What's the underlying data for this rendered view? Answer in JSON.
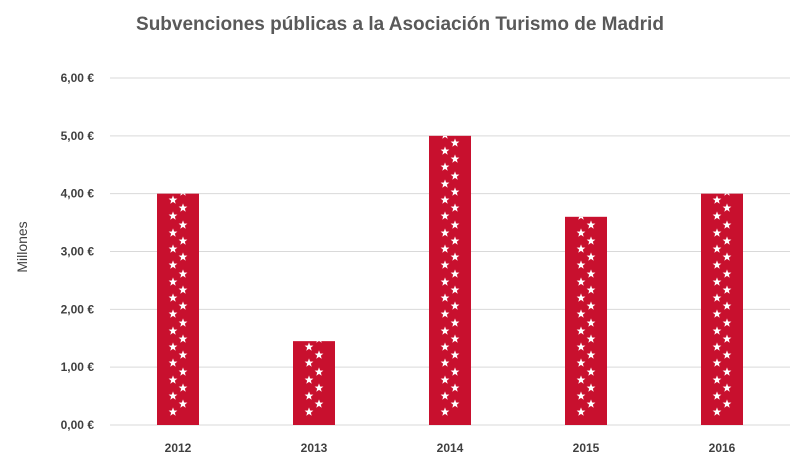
{
  "chart_data": {
    "type": "bar",
    "title": "Subvenciones públicas a  la Asociación Turismo de Madrid",
    "ylabel": "Millones",
    "xlabel": "",
    "categories": [
      "2012",
      "2013",
      "2014",
      "2015",
      "2016"
    ],
    "values": [
      4.0,
      1.45,
      5.0,
      3.6,
      4.0
    ],
    "ylim": [
      0,
      6
    ],
    "yticks": [
      "0,00 €",
      "1,00 €",
      "2,00 €",
      "3,00 €",
      "4,00 €",
      "5,00 €",
      "6,00 €"
    ],
    "grid": true,
    "legend": "none",
    "bar_color": "#c8102e",
    "star_color": "#ffffff",
    "bar_decoration": "white-star-columns"
  }
}
